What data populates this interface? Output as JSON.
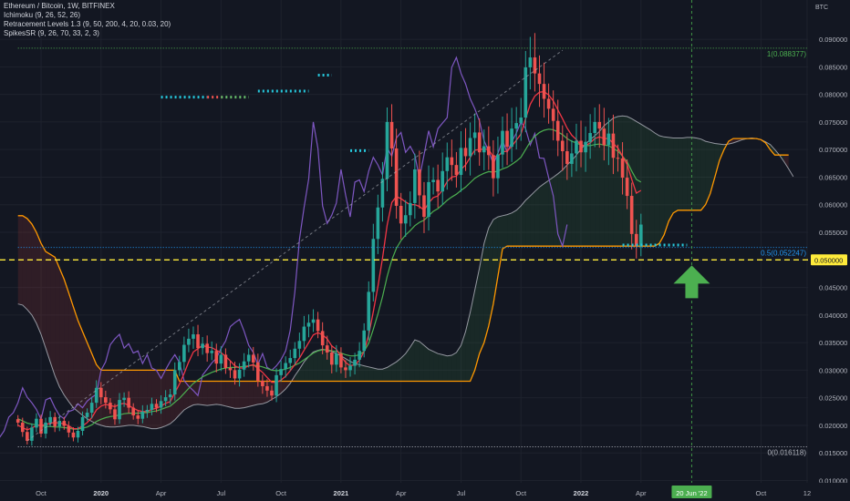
{
  "chart_data": {
    "type": "candlestick",
    "symbol_line": "Ethereum / Bitcoin, 1W, BITFINEX",
    "currency": "BTC",
    "indicators": [
      "Ichimoku (9, 26, 52, 26)",
      "Retracement Levels 1.3 (9, 50, 200, 4, 20, 0.03, 20)",
      "SpikesSR (9, 26, 70, 33, 2, 3)"
    ],
    "y_axis": {
      "ylim": [
        0.01,
        0.0915
      ],
      "ticks": [
        0.09,
        0.085,
        0.08,
        0.075,
        0.07,
        0.065,
        0.06,
        0.055,
        0.05,
        0.045,
        0.04,
        0.035,
        0.03,
        0.025,
        0.02,
        0.015,
        0.01
      ],
      "tick_labels": [
        "0.090000",
        "0.085000",
        "0.080000",
        "0.075000",
        "0.070000",
        "0.065000",
        "0.060000",
        "0.055000",
        "0.050000",
        "0.045000",
        "0.040000",
        "0.035000",
        "0.030000",
        "0.025000",
        "0.020000",
        "0.015000",
        "0.010000"
      ]
    },
    "x_axis": {
      "ticks": [
        {
          "label": "Oct",
          "w": 0
        },
        {
          "label": "2020",
          "w": 13
        },
        {
          "label": "Apr",
          "w": 26
        },
        {
          "label": "Jul",
          "w": 39
        },
        {
          "label": "Oct",
          "w": 52
        },
        {
          "label": "2021",
          "w": 65
        },
        {
          "label": "Apr",
          "w": 78
        },
        {
          "label": "Jul",
          "w": 91
        },
        {
          "label": "Oct",
          "w": 104
        },
        {
          "label": "2022",
          "w": 117
        },
        {
          "label": "Apr",
          "w": 130
        },
        {
          "label": "Oct",
          "w": 156
        },
        {
          "label": "12",
          "w": 166
        }
      ],
      "highlight": {
        "label": "20 Jun '22",
        "w": 141
      }
    },
    "current_price": {
      "label": "0.050000",
      "value": 0.05
    },
    "fib_levels": [
      {
        "label": "1(0.088377)",
        "value": 0.088377
      },
      {
        "label": "0.5(0.052247)",
        "value": 0.052247
      },
      {
        "label": "0(0.016118)",
        "value": 0.016118
      }
    ],
    "weekly_closes": [
      0.0205,
      0.0188,
      0.0172,
      0.0196,
      0.0212,
      0.0185,
      0.0205,
      0.0215,
      0.0198,
      0.0208,
      0.0199,
      0.0187,
      0.0178,
      0.019,
      0.0215,
      0.0223,
      0.0241,
      0.0268,
      0.0251,
      0.0241,
      0.0229,
      0.0211,
      0.0246,
      0.025,
      0.0232,
      0.0218,
      0.0212,
      0.0225,
      0.0228,
      0.0239,
      0.0232,
      0.0244,
      0.0251,
      0.0256,
      0.03,
      0.0315,
      0.0346,
      0.0357,
      0.0365,
      0.034,
      0.0348,
      0.0331,
      0.0335,
      0.0312,
      0.0328,
      0.0304,
      0.03,
      0.0285,
      0.0301,
      0.0316,
      0.0328,
      0.0314,
      0.0281,
      0.0271,
      0.0263,
      0.0254,
      0.0291,
      0.0302,
      0.0313,
      0.0322,
      0.0339,
      0.0353,
      0.0379,
      0.0386,
      0.0392,
      0.0371,
      0.0345,
      0.0332,
      0.031,
      0.033,
      0.0305,
      0.03,
      0.0308,
      0.0319,
      0.0335,
      0.0372,
      0.0442,
      0.0538,
      0.0595,
      0.0647,
      0.075,
      0.0702,
      0.0598,
      0.0566,
      0.0581,
      0.0603,
      0.0664,
      0.0617,
      0.0578,
      0.0641,
      0.0645,
      0.0624,
      0.0661,
      0.0686,
      0.0672,
      0.0654,
      0.0703,
      0.0688,
      0.0721,
      0.0731,
      0.0695,
      0.0706,
      0.069,
      0.0648,
      0.0691,
      0.0734,
      0.0705,
      0.0738,
      0.0748,
      0.0758,
      0.0849,
      0.0867,
      0.0838,
      0.0819,
      0.0792,
      0.0774,
      0.0752,
      0.0716,
      0.0697,
      0.0674,
      0.0693,
      0.0716,
      0.0695,
      0.0714,
      0.073,
      0.075,
      0.0738,
      0.0708,
      0.0729,
      0.0685,
      0.0684,
      0.0649,
      0.0616,
      0.0547,
      0.0525,
      0.0564
    ],
    "tenkan": [
      0.02,
      0.0196,
      0.0192,
      0.0195,
      0.02,
      0.02,
      0.0201,
      0.0204,
      0.0205,
      0.0204,
      0.0203,
      0.0199,
      0.0194,
      0.0194,
      0.0199,
      0.0205,
      0.0214,
      0.0228,
      0.0235,
      0.0238,
      0.0236,
      0.0234,
      0.0238,
      0.024,
      0.0236,
      0.0231,
      0.0227,
      0.0225,
      0.0225,
      0.0229,
      0.0231,
      0.0235,
      0.024,
      0.0243,
      0.0259,
      0.0275,
      0.0294,
      0.0315,
      0.0333,
      0.0339,
      0.0345,
      0.0342,
      0.0341,
      0.0336,
      0.0332,
      0.0325,
      0.0317,
      0.0308,
      0.0304,
      0.0304,
      0.0308,
      0.031,
      0.0303,
      0.0296,
      0.0287,
      0.0278,
      0.0278,
      0.0282,
      0.0289,
      0.0299,
      0.031,
      0.0322,
      0.0336,
      0.035,
      0.0364,
      0.0368,
      0.0364,
      0.0357,
      0.0344,
      0.0338,
      0.0325,
      0.0314,
      0.0308,
      0.031,
      0.0318,
      0.0334,
      0.0364,
      0.0406,
      0.0452,
      0.0503,
      0.0563,
      0.0604,
      0.0615,
      0.0611,
      0.0605,
      0.06,
      0.06,
      0.0597,
      0.059,
      0.0603,
      0.0613,
      0.0616,
      0.0627,
      0.0642,
      0.065,
      0.0652,
      0.0664,
      0.0672,
      0.0686,
      0.0699,
      0.07,
      0.0701,
      0.07,
      0.0687,
      0.0688,
      0.0696,
      0.0697,
      0.0706,
      0.0717,
      0.0728,
      0.0756,
      0.0782,
      0.0797,
      0.0804,
      0.0805,
      0.0799,
      0.0788,
      0.0772,
      0.0756,
      0.0739,
      0.0726,
      0.0718,
      0.0708,
      0.0707,
      0.0712,
      0.072,
      0.0723,
      0.072,
      0.072,
      0.0711,
      0.0703,
      0.0688,
      0.0673,
      0.0646,
      0.0621,
      0.0626
    ],
    "kijun": [
      0.0212,
      0.0208,
      0.0204,
      0.0202,
      0.0201,
      0.0199,
      0.0198,
      0.0198,
      0.0197,
      0.0197,
      0.0196,
      0.0195,
      0.0193,
      0.0193,
      0.0195,
      0.0197,
      0.0201,
      0.0207,
      0.0211,
      0.0214,
      0.0216,
      0.0217,
      0.0219,
      0.0221,
      0.0222,
      0.0222,
      0.0222,
      0.0223,
      0.0223,
      0.0225,
      0.0226,
      0.0229,
      0.0232,
      0.0235,
      0.0242,
      0.0249,
      0.0258,
      0.0267,
      0.0276,
      0.0282,
      0.0288,
      0.0292,
      0.0296,
      0.0299,
      0.0302,
      0.0304,
      0.0305,
      0.0305,
      0.0306,
      0.0307,
      0.0308,
      0.0309,
      0.0308,
      0.0306,
      0.0303,
      0.03,
      0.0299,
      0.03,
      0.0302,
      0.0305,
      0.0309,
      0.0313,
      0.0319,
      0.0325,
      0.0331,
      0.0335,
      0.0337,
      0.0337,
      0.0335,
      0.0334,
      0.0331,
      0.0328,
      0.0326,
      0.0326,
      0.0328,
      0.0334,
      0.0349,
      0.0374,
      0.0402,
      0.0433,
      0.047,
      0.05,
      0.0521,
      0.0535,
      0.0545,
      0.0553,
      0.0562,
      0.0568,
      0.0572,
      0.058,
      0.0588,
      0.0593,
      0.06,
      0.0608,
      0.0614,
      0.0619,
      0.0626,
      0.0632,
      0.064,
      0.0648,
      0.0653,
      0.0657,
      0.066,
      0.0659,
      0.0661,
      0.0665,
      0.0668,
      0.0673,
      0.0679,
      0.0686,
      0.07,
      0.0714,
      0.0724,
      0.0731,
      0.0735,
      0.0737,
      0.0736,
      0.0732,
      0.0727,
      0.072,
      0.0715,
      0.0712,
      0.0708,
      0.0707,
      0.0707,
      0.0709,
      0.071,
      0.0708,
      0.0707,
      0.0702,
      0.0697,
      0.0688,
      0.0678,
      0.0661,
      0.0646,
      0.0641
    ],
    "span_a": [
      0.042,
      0.0418,
      0.041,
      0.04,
      0.0385,
      0.0365,
      0.034,
      0.0315,
      0.029,
      0.027,
      0.0255,
      0.0243,
      0.0232,
      0.0225,
      0.0218,
      0.0212,
      0.0207,
      0.0203,
      0.02,
      0.0198,
      0.0197,
      0.0197,
      0.0198,
      0.0199,
      0.02,
      0.02,
      0.0199,
      0.0198,
      0.0196,
      0.0194,
      0.0194,
      0.0196,
      0.0199,
      0.0203,
      0.021,
      0.0219,
      0.0228,
      0.0233,
      0.0237,
      0.0238,
      0.0237,
      0.0236,
      0.0237,
      0.0238,
      0.0237,
      0.0235,
      0.0233,
      0.0231,
      0.0231,
      0.0232,
      0.0234,
      0.0236,
      0.0238,
      0.0239,
      0.0242,
      0.0247,
      0.0252,
      0.0258,
      0.0266,
      0.0276,
      0.029,
      0.0302,
      0.0315,
      0.0325,
      0.0333,
      0.0336,
      0.0338,
      0.0336,
      0.0334,
      0.033,
      0.0326,
      0.0321,
      0.0316,
      0.0312,
      0.031,
      0.0308,
      0.0306,
      0.0304,
      0.0302,
      0.0302,
      0.0305,
      0.031,
      0.0315,
      0.0322,
      0.033,
      0.0342,
      0.0355,
      0.0352,
      0.0345,
      0.0338,
      0.0334,
      0.033,
      0.0328,
      0.0326,
      0.0327,
      0.0332,
      0.0345,
      0.037,
      0.0405,
      0.0445,
      0.0485,
      0.053,
      0.0558,
      0.0573,
      0.0578,
      0.058,
      0.0582,
      0.0585,
      0.059,
      0.0598,
      0.0608,
      0.0616,
      0.0624,
      0.0632,
      0.0638,
      0.0644,
      0.065,
      0.0656,
      0.0663,
      0.0672,
      0.068,
      0.069,
      0.0701,
      0.071,
      0.0718,
      0.0725,
      0.0733,
      0.0743,
      0.075,
      0.0757,
      0.076,
      0.0761,
      0.076,
      0.0756,
      0.0751,
      0.0746,
      0.0741,
      0.0736,
      0.073,
      0.0725,
      0.0723,
      0.0722,
      0.0721,
      0.0721,
      0.0721,
      0.0722,
      0.0722,
      0.0721,
      0.0719,
      0.0715,
      0.0713,
      0.0711,
      0.071,
      0.0709,
      0.071,
      0.0712,
      0.0715,
      0.0718,
      0.072,
      0.0721,
      0.072,
      0.0718,
      0.0714,
      0.0709,
      0.07,
      0.069,
      0.0678,
      0.0665,
      0.0651
    ],
    "span_b": [
      0.058,
      0.058,
      0.0575,
      0.0565,
      0.055,
      0.053,
      0.0515,
      0.051,
      0.0505,
      0.0485,
      0.0465,
      0.044,
      0.0415,
      0.039,
      0.037,
      0.035,
      0.033,
      0.031,
      0.03,
      0.03,
      0.03,
      0.03,
      0.03,
      0.03,
      0.03,
      0.03,
      0.03,
      0.03,
      0.03,
      0.03,
      0.03,
      0.03,
      0.03,
      0.03,
      0.03,
      0.028,
      0.028,
      0.028,
      0.028,
      0.028,
      0.028,
      0.028,
      0.028,
      0.028,
      0.028,
      0.028,
      0.028,
      0.028,
      0.028,
      0.028,
      0.028,
      0.028,
      0.028,
      0.028,
      0.028,
      0.028,
      0.028,
      0.028,
      0.028,
      0.028,
      0.028,
      0.028,
      0.028,
      0.028,
      0.028,
      0.028,
      0.028,
      0.028,
      0.028,
      0.028,
      0.028,
      0.028,
      0.028,
      0.028,
      0.028,
      0.028,
      0.028,
      0.028,
      0.028,
      0.028,
      0.028,
      0.028,
      0.028,
      0.028,
      0.028,
      0.028,
      0.028,
      0.028,
      0.028,
      0.028,
      0.028,
      0.028,
      0.028,
      0.028,
      0.028,
      0.028,
      0.028,
      0.028,
      0.028,
      0.03,
      0.033,
      0.035,
      0.038,
      0.042,
      0.047,
      0.052,
      0.0525,
      0.0525,
      0.0525,
      0.0525,
      0.0525,
      0.0525,
      0.0525,
      0.0525,
      0.0525,
      0.0525,
      0.0525,
      0.0525,
      0.0525,
      0.0525,
      0.0525,
      0.0525,
      0.0525,
      0.0525,
      0.0525,
      0.0525,
      0.0525,
      0.0525,
      0.0525,
      0.0525,
      0.0525,
      0.0525,
      0.0525,
      0.0525,
      0.0525,
      0.0525,
      0.0525,
      0.0525,
      0.0525,
      0.053,
      0.0545,
      0.057,
      0.0585,
      0.059,
      0.059,
      0.059,
      0.059,
      0.059,
      0.059,
      0.06,
      0.062,
      0.065,
      0.068,
      0.07,
      0.0715,
      0.072,
      0.072,
      0.072,
      0.072,
      0.072,
      0.072,
      0.0718,
      0.0712,
      0.07,
      0.069,
      0.069,
      0.069,
      0.069
    ],
    "chikou_end_week": 114,
    "spikes_sr": [
      {
        "from_w": 26,
        "to_w": 36,
        "value": 0.0795,
        "color": "#26c6da"
      },
      {
        "from_w": 36,
        "to_w": 39,
        "value": 0.0795,
        "color": "#ef5350"
      },
      {
        "from_w": 39,
        "to_w": 45,
        "value": 0.0795,
        "color": "#66bb6a"
      },
      {
        "from_w": 47,
        "to_w": 58,
        "value": 0.0806,
        "color": "#26c6da"
      },
      {
        "from_w": 60,
        "to_w": 63,
        "value": 0.0835,
        "color": "#26c6da"
      },
      {
        "from_w": 67,
        "to_w": 71,
        "value": 0.0698,
        "color": "#26c6da"
      },
      {
        "from_w": 126,
        "to_w": 140,
        "value": 0.0527,
        "color": "#26c6da"
      }
    ],
    "trendline": {
      "from": {
        "w": -3,
        "value": 0.0172
      },
      "to": {
        "w": 113,
        "value": 0.088
      }
    },
    "vertical_marker_week": 141,
    "arrow": {
      "w": 141,
      "tip": 0.049,
      "direction": "up",
      "color": "#4caf50"
    }
  }
}
